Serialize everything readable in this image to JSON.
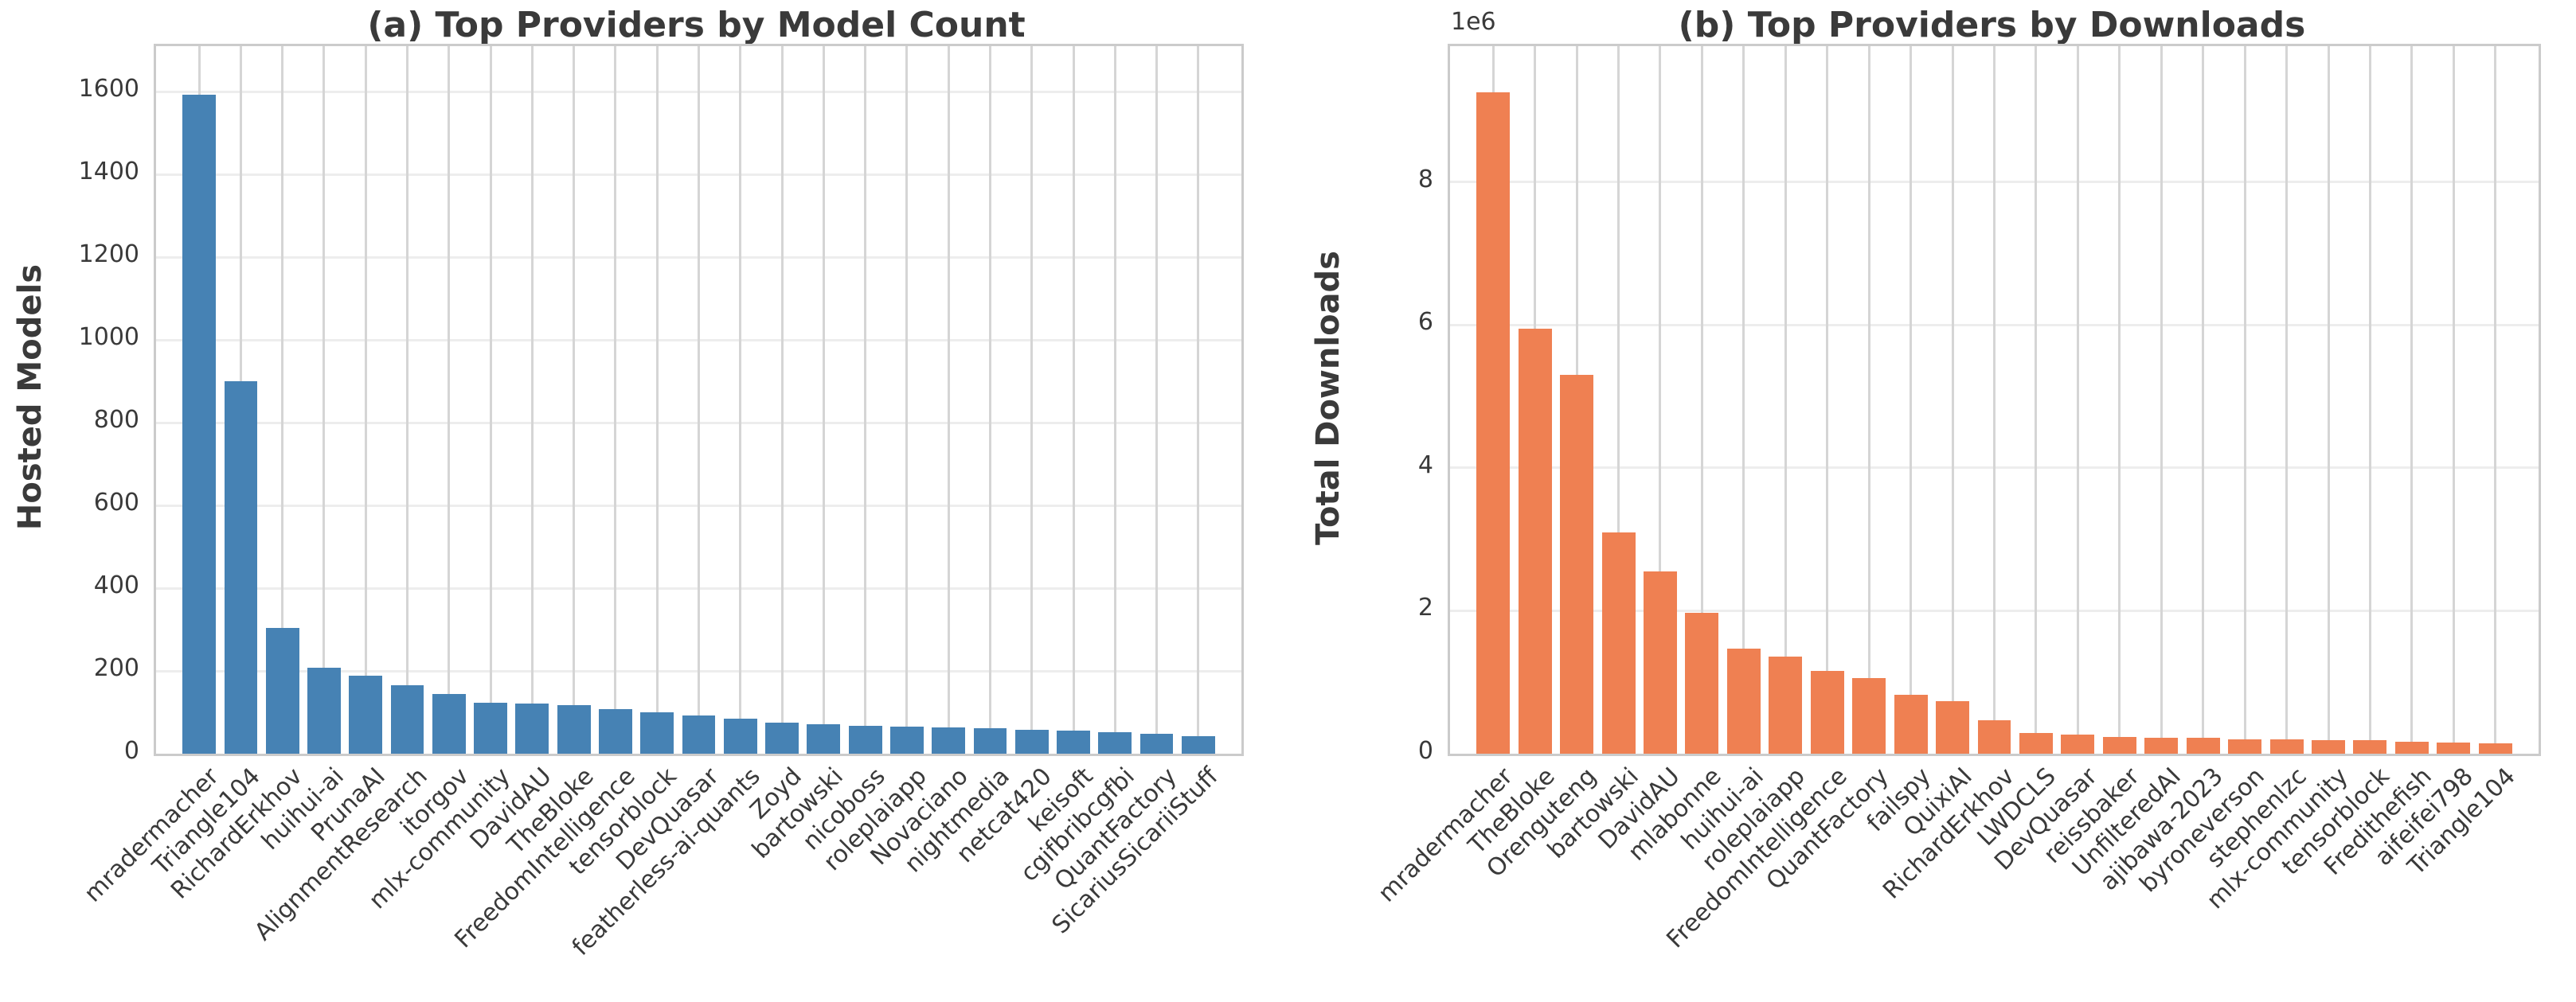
{
  "figure_background": "#ffffff",
  "text_color": "#3a3a3a",
  "grid_color_vertical": "#d5d5d5",
  "grid_color_horizontal": "#ededed",
  "chart_data": [
    {
      "type": "bar",
      "panel": "a",
      "title": "(a) Top Providers by Model Count",
      "ylabel": "Hosted Models",
      "xlabel": "",
      "bar_color": "#4682B4",
      "legend": "none",
      "grid": "on",
      "x_tick_rotation": 45,
      "ylim": [
        0,
        1710
      ],
      "ytick_values": [
        0,
        200,
        400,
        600,
        800,
        1000,
        1200,
        1400,
        1600
      ],
      "ytick_labels": [
        "0",
        "200",
        "400",
        "600",
        "800",
        "1000",
        "1200",
        "1400",
        "1600"
      ],
      "categories": [
        "mradermacher",
        "Triangle104",
        "RichardErkhov",
        "huihui-ai",
        "PrunaAI",
        "AlignmentResearch",
        "itorgov",
        "mlx-community",
        "DavidAU",
        "TheBloke",
        "FreedomIntelligence",
        "tensorblock",
        "DevQuasar",
        "featherless-ai-quants",
        "Zoyd",
        "bartowski",
        "nicoboss",
        "roleplaiapp",
        "Novaciano",
        "nightmedia",
        "netcat420",
        "keisoft",
        "cgifbribcgfbi",
        "QuantFactory",
        "SicariusSicariiStuff"
      ],
      "values": [
        1593,
        900,
        303,
        207,
        188,
        166,
        144,
        123,
        122,
        118,
        108,
        101,
        93,
        84,
        76,
        71,
        68,
        65,
        63,
        61,
        58,
        56,
        52,
        48,
        42
      ]
    },
    {
      "type": "bar",
      "panel": "b",
      "title": "(b) Top Providers by Downloads",
      "ylabel": "Total Downloads",
      "xlabel": "",
      "offset_text": "1e6",
      "bar_color": "#EF8052",
      "legend": "none",
      "grid": "on",
      "x_tick_rotation": 45,
      "ylim": [
        0,
        9900000
      ],
      "ytick_values": [
        0,
        2000000,
        4000000,
        6000000,
        8000000
      ],
      "ytick_labels": [
        "0",
        "2",
        "4",
        "6",
        "8"
      ],
      "categories": [
        "mradermacher",
        "TheBloke",
        "Orenguteng",
        "bartowski",
        "DavidAU",
        "mlabonne",
        "huihui-ai",
        "roleplaiapp",
        "FreedomIntelligence",
        "QuantFactory",
        "failspy",
        "QuixiAI",
        "RichardErkhov",
        "LWDCLS",
        "DevQuasar",
        "reissbaker",
        "UnfilteredAI",
        "ajibawa-2023",
        "byroneverson",
        "stephenlzc",
        "mlx-community",
        "tensorblock",
        "Fredithefish",
        "aifeifei798",
        "Triangle104"
      ],
      "values": [
        9250000,
        5950000,
        5300000,
        3100000,
        2550000,
        1970000,
        1470000,
        1360000,
        1160000,
        1060000,
        820000,
        730000,
        470000,
        290000,
        270000,
        230000,
        225000,
        220000,
        200000,
        200000,
        195000,
        190000,
        165000,
        155000,
        150000
      ]
    }
  ]
}
